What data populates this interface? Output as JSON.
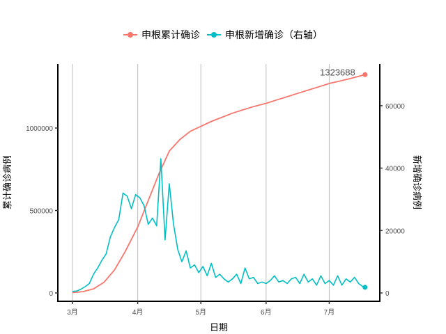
{
  "legend": {
    "items": [
      {
        "label": "申根累计确诊",
        "color": "#F8766D"
      },
      {
        "label": "申根新增确诊（右轴）",
        "color": "#00BFC4"
      }
    ]
  },
  "axes": {
    "x_title": "日期",
    "y_left_title": "累计确诊病例",
    "y_right_title": "新增确诊病例",
    "x_ticks": [
      "3月",
      "4月",
      "5月",
      "6月",
      "7月"
    ],
    "y_left_ticks": [
      "0",
      "500000",
      "1000000"
    ],
    "y_right_ticks": [
      "0",
      "20000",
      "40000",
      "60000"
    ]
  },
  "annotation": {
    "text": "1323688",
    "color": "#F8766D"
  },
  "chart_data": {
    "type": "line",
    "title": "",
    "xlabel": "日期",
    "ylabel": "累计确诊病例",
    "ylabel_right": "新增确诊病例",
    "x_start": "03-01",
    "x_end": "07-18",
    "x_tick_labels": [
      "3月",
      "4月",
      "5月",
      "6月",
      "7月"
    ],
    "ylim": [
      0,
      1400000
    ],
    "ylim_right": [
      0,
      70000
    ],
    "grid": "vertical major lines only",
    "legend_position": "top",
    "annotations": [
      {
        "text": "1323688",
        "series": "申根累计确诊",
        "position": "last point"
      }
    ],
    "series": [
      {
        "name": "申根累计确诊",
        "axis": "left",
        "color": "#F8766D",
        "x_days_from_mar1": [
          0,
          5,
          10,
          15,
          20,
          25,
          31,
          36,
          41,
          46,
          51,
          56,
          61,
          66,
          71,
          76,
          81,
          86,
          92,
          97,
          102,
          107,
          112,
          117,
          122,
          127,
          132,
          139
        ],
        "values": [
          2000,
          8000,
          25000,
          65000,
          140000,
          250000,
          400000,
          560000,
          720000,
          860000,
          930000,
          980000,
          1010000,
          1040000,
          1065000,
          1090000,
          1110000,
          1130000,
          1150000,
          1170000,
          1190000,
          1210000,
          1230000,
          1250000,
          1270000,
          1285000,
          1300000,
          1323688
        ]
      },
      {
        "name": "申根新增确诊（右轴）",
        "axis": "right",
        "color": "#00BFC4",
        "x_days_from_mar1": [
          0,
          2,
          4,
          6,
          8,
          10,
          12,
          14,
          16,
          18,
          20,
          22,
          24,
          26,
          28,
          30,
          32,
          34,
          36,
          38,
          40,
          42,
          44,
          46,
          48,
          50,
          52,
          54,
          56,
          58,
          60,
          62,
          64,
          66,
          68,
          70,
          72,
          74,
          76,
          78,
          80,
          82,
          84,
          86,
          88,
          90,
          92,
          94,
          96,
          98,
          100,
          102,
          104,
          106,
          108,
          110,
          112,
          114,
          116,
          118,
          120,
          122,
          124,
          126,
          128,
          130,
          132,
          134,
          136,
          138,
          139
        ],
        "values": [
          500,
          600,
          1200,
          2000,
          3000,
          6000,
          8000,
          10500,
          12500,
          18000,
          21000,
          23500,
          32000,
          31000,
          27000,
          31500,
          30500,
          28000,
          22000,
          24000,
          21500,
          43000,
          17000,
          35000,
          22000,
          14000,
          10000,
          13500,
          8000,
          9000,
          6500,
          8500,
          5500,
          9500,
          5000,
          6000,
          4500,
          3500,
          4500,
          6000,
          3000,
          8000,
          4500,
          5000,
          3000,
          3500,
          3000,
          4000,
          5500,
          3500,
          4000,
          3000,
          4500,
          5000,
          3000,
          6000,
          3500,
          4500,
          2500,
          5500,
          3000,
          4000,
          2500,
          5500,
          2500,
          4500,
          3500,
          5000,
          3000,
          2000,
          1800
        ]
      }
    ]
  }
}
